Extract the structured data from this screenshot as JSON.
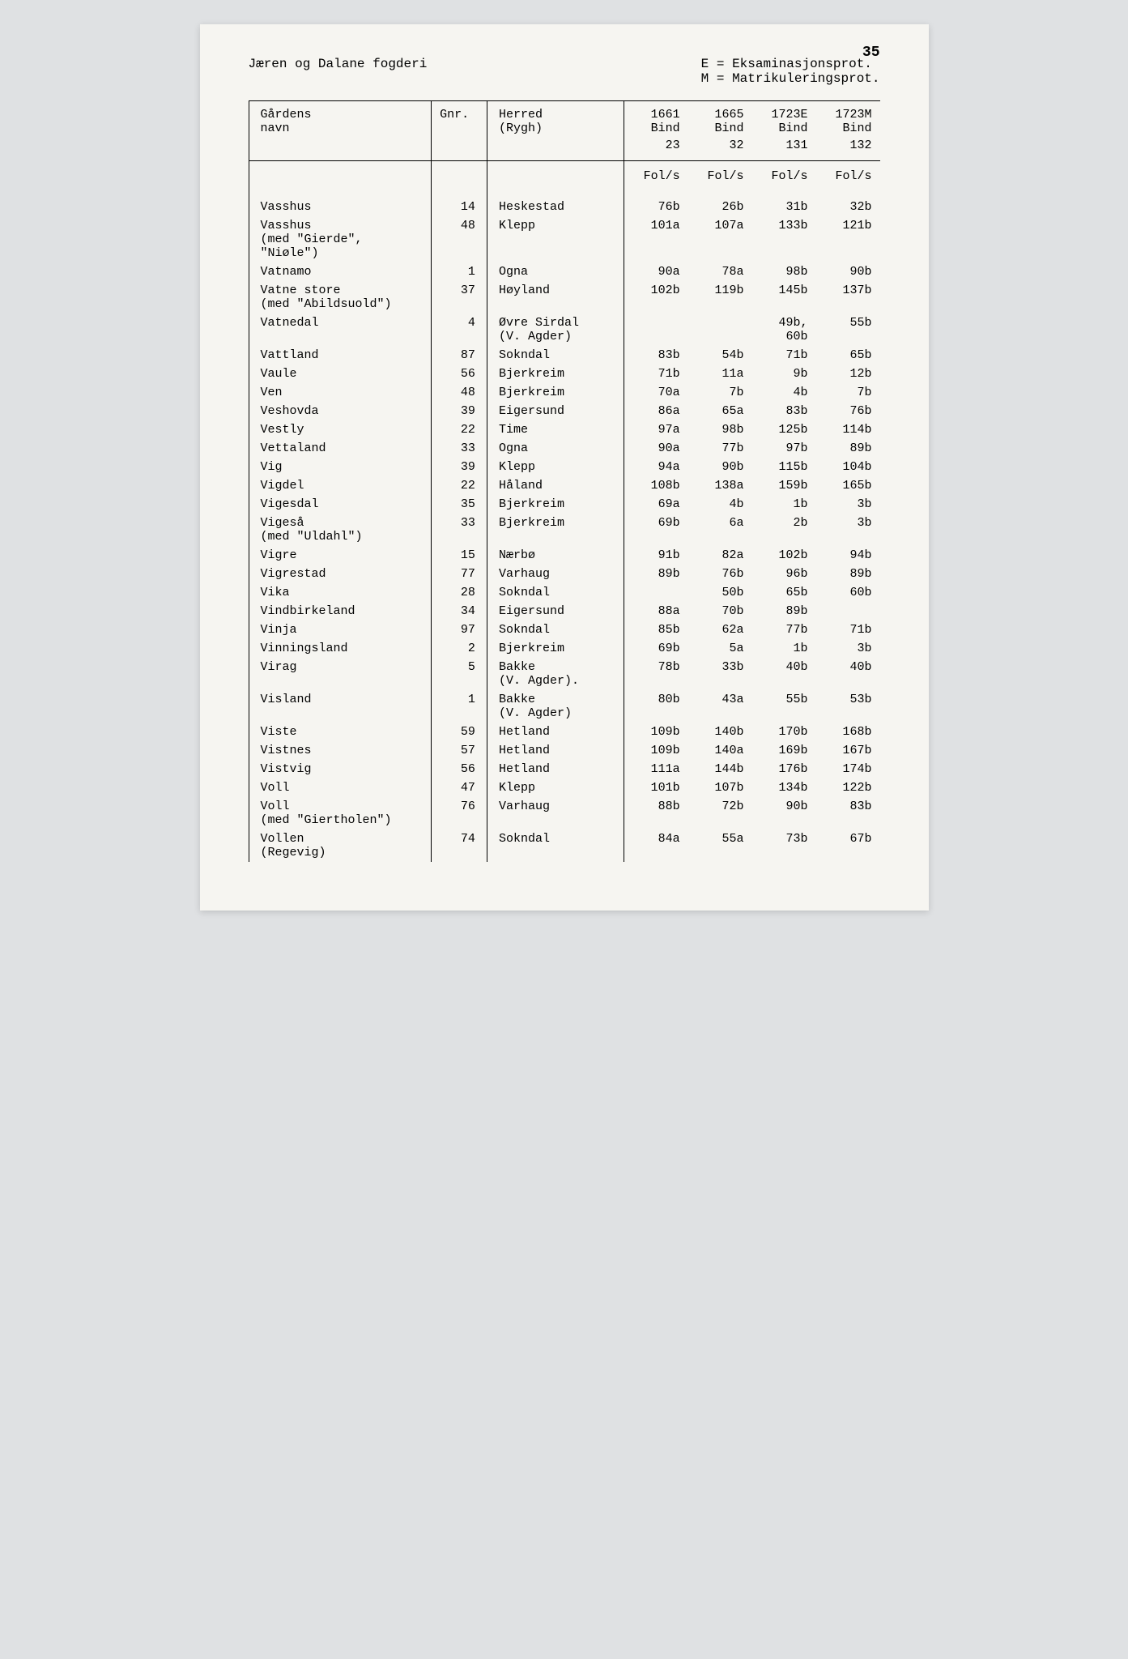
{
  "page_number": "35",
  "header_left": "Jæren og Dalane fogderi",
  "legend_line1": "E = Eksaminasjonsprot.",
  "legend_line2": "M = Matrikuleringsprot.",
  "columns": {
    "name_label": "Gårdens",
    "name_sub": "navn",
    "gnr": "Gnr.",
    "herred_label": "Herred",
    "herred_sub": "(Rygh)",
    "years": [
      "1661",
      "1665",
      "1723E",
      "1723M"
    ],
    "bind_label": "Bind",
    "bind_values": [
      "23",
      "32",
      "131",
      "132"
    ],
    "fols": "Fol/s"
  },
  "rows": [
    {
      "name": "Vasshus",
      "sub": "",
      "gnr": "14",
      "herred": "Heskestad",
      "herred_sub": "",
      "v": [
        "76b",
        "26b",
        "31b",
        "32b"
      ]
    },
    {
      "name": "Vasshus",
      "sub": "(med \"Gierde\", \"Niøle\")",
      "gnr": "48",
      "herred": "Klepp",
      "herred_sub": "",
      "v": [
        "101a",
        "107a",
        "133b",
        "121b"
      ]
    },
    {
      "name": "Vatnamo",
      "sub": "",
      "gnr": "1",
      "herred": "Ogna",
      "herred_sub": "",
      "v": [
        "90a",
        "78a",
        "98b",
        "90b"
      ]
    },
    {
      "name": "Vatne store",
      "sub": "(med \"Abildsuold\")",
      "gnr": "37",
      "herred": "Høyland",
      "herred_sub": "",
      "v": [
        "102b",
        "119b",
        "145b",
        "137b"
      ]
    },
    {
      "name": "Vatnedal",
      "sub": "",
      "gnr": "4",
      "herred": "Øvre Sirdal",
      "herred_sub": "(V. Agder)",
      "v": [
        "",
        "",
        "49b, 60b",
        "55b"
      ]
    },
    {
      "name": "Vattland",
      "sub": "",
      "gnr": "87",
      "herred": "Sokndal",
      "herred_sub": "",
      "v": [
        "83b",
        "54b",
        "71b",
        "65b"
      ]
    },
    {
      "name": "Vaule",
      "sub": "",
      "gnr": "56",
      "herred": "Bjerkreim",
      "herred_sub": "",
      "v": [
        "71b",
        "11a",
        "9b",
        "12b"
      ]
    },
    {
      "name": "Ven",
      "sub": "",
      "gnr": "48",
      "herred": "Bjerkreim",
      "herred_sub": "",
      "v": [
        "70a",
        "7b",
        "4b",
        "7b"
      ]
    },
    {
      "name": "Veshovda",
      "sub": "",
      "gnr": "39",
      "herred": "Eigersund",
      "herred_sub": "",
      "v": [
        "86a",
        "65a",
        "83b",
        "76b"
      ]
    },
    {
      "name": "Vestly",
      "sub": "",
      "gnr": "22",
      "herred": "Time",
      "herred_sub": "",
      "v": [
        "97a",
        "98b",
        "125b",
        "114b"
      ]
    },
    {
      "name": "Vettaland",
      "sub": "",
      "gnr": "33",
      "herred": "Ogna",
      "herred_sub": "",
      "v": [
        "90a",
        "77b",
        "97b",
        "89b"
      ]
    },
    {
      "name": "Vig",
      "sub": "",
      "gnr": "39",
      "herred": "Klepp",
      "herred_sub": "",
      "v": [
        "94a",
        "90b",
        "115b",
        "104b"
      ]
    },
    {
      "name": "Vigdel",
      "sub": "",
      "gnr": "22",
      "herred": "Håland",
      "herred_sub": "",
      "v": [
        "108b",
        "138a",
        "159b",
        "165b"
      ]
    },
    {
      "name": "Vigesdal",
      "sub": "",
      "gnr": "35",
      "herred": "Bjerkreim",
      "herred_sub": "",
      "v": [
        "69a",
        "4b",
        "1b",
        "3b"
      ]
    },
    {
      "name": "Vigeså",
      "sub": "(med \"Uldahl\")",
      "gnr": "33",
      "herred": "Bjerkreim",
      "herred_sub": "",
      "v": [
        "69b",
        "6a",
        "2b",
        "3b"
      ]
    },
    {
      "name": "Vigre",
      "sub": "",
      "gnr": "15",
      "herred": "Nærbø",
      "herred_sub": "",
      "v": [
        "91b",
        "82a",
        "102b",
        "94b"
      ]
    },
    {
      "name": "Vigrestad",
      "sub": "",
      "gnr": "77",
      "herred": "Varhaug",
      "herred_sub": "",
      "v": [
        "89b",
        "76b",
        "96b",
        "89b"
      ]
    },
    {
      "name": "Vika",
      "sub": "",
      "gnr": "28",
      "herred": "Sokndal",
      "herred_sub": "",
      "v": [
        "",
        "50b",
        "65b",
        "60b"
      ]
    },
    {
      "name": "Vindbirkeland",
      "sub": "",
      "gnr": "34",
      "herred": "Eigersund",
      "herred_sub": "",
      "v": [
        "88a",
        "70b",
        "89b",
        ""
      ]
    },
    {
      "name": "Vinja",
      "sub": "",
      "gnr": "97",
      "herred": "Sokndal",
      "herred_sub": "",
      "v": [
        "85b",
        "62a",
        "77b",
        "71b"
      ]
    },
    {
      "name": "Vinningsland",
      "sub": "",
      "gnr": "2",
      "herred": "Bjerkreim",
      "herred_sub": "",
      "v": [
        "69b",
        "5a",
        "1b",
        "3b"
      ]
    },
    {
      "name": "Virag",
      "sub": "",
      "gnr": "5",
      "herred": "Bakke",
      "herred_sub": "(V. Agder).",
      "v": [
        "78b",
        "33b",
        "40b",
        "40b"
      ]
    },
    {
      "name": "Visland",
      "sub": "",
      "gnr": "1",
      "herred": "Bakke",
      "herred_sub": "(V. Agder)",
      "v": [
        "80b",
        "43a",
        "55b",
        "53b"
      ]
    },
    {
      "name": "Viste",
      "sub": "",
      "gnr": "59",
      "herred": "Hetland",
      "herred_sub": "",
      "v": [
        "109b",
        "140b",
        "170b",
        "168b"
      ]
    },
    {
      "name": "Vistnes",
      "sub": "",
      "gnr": "57",
      "herred": "Hetland",
      "herred_sub": "",
      "v": [
        "109b",
        "140a",
        "169b",
        "167b"
      ]
    },
    {
      "name": "Vistvig",
      "sub": "",
      "gnr": "56",
      "herred": "Hetland",
      "herred_sub": "",
      "v": [
        "111a",
        "144b",
        "176b",
        "174b"
      ]
    },
    {
      "name": "Voll",
      "sub": "",
      "gnr": "47",
      "herred": "Klepp",
      "herred_sub": "",
      "v": [
        "101b",
        "107b",
        "134b",
        "122b"
      ]
    },
    {
      "name": "Voll",
      "sub": "(med \"Giertholen\")",
      "gnr": "76",
      "herred": "Varhaug",
      "herred_sub": "",
      "v": [
        "88b",
        "72b",
        "90b",
        "83b"
      ]
    },
    {
      "name": "Vollen",
      "sub": "(Regevig)",
      "gnr": "74",
      "herred": "Sokndal",
      "herred_sub": "",
      "v": [
        "84a",
        "55a",
        "73b",
        "67b"
      ]
    }
  ]
}
